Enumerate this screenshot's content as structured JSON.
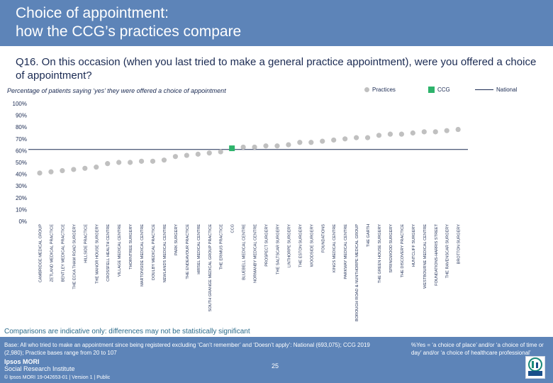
{
  "slide": {
    "title_line1": "Choice of appointment:",
    "title_line2": "how the CCG’s practices compare",
    "question": "Q16. On this occasion (when you last tried to make a general practice appointment), were you offered a choice of appointment?",
    "subtitle": "Percentage of patients saying ‘yes’ they were offered a choice of appointment",
    "note": "Comparisons are indicative only: differences may not be statistically significant",
    "base_text": "Base: All who tried to make an appointment since being registered excluding ‘Can’t remember’ and ‘Doesn’t apply’: National (693,075); CCG 2019 (2,980); Practice bases range from 20 to 107",
    "yes_note": "%Yes = ‘a choice of place’ and/or ‘a choice of time or day’ and/or ‘a choice of healthcare professional’",
    "ipsos_line1": "Ipsos MORI",
    "ipsos_line2": "Social Research Institute",
    "footer_left": "© Ipsos MORI    19-042653-01 | Version 1 | Public",
    "page_number": "25",
    "logo_icon": "ipsos-logo-icon"
  },
  "legend": {
    "practices": "Practices",
    "ccg": "CCG",
    "national": "National"
  },
  "colors": {
    "header": "#5d84b8",
    "practice_dot": "#c0c0c0",
    "ccg_dot": "#2db36b",
    "national_line": "#1a2a52",
    "text_dark": "#1a2a52"
  },
  "chart_data": {
    "type": "scatter",
    "y_ticks": [
      "0%",
      "10%",
      "20%",
      "30%",
      "40%",
      "50%",
      "60%",
      "70%",
      "80%",
      "90%",
      "100%"
    ],
    "ylim": [
      0,
      100
    ],
    "national_value": 61,
    "ccg_value": 62,
    "categories": [
      "CAMBRIDGE MEDICAL GROUP",
      "ZETLAND MEDICAL PRACTICE",
      "BENTLEY MEDICAL PRACTICE",
      "THE ECKA THAM ROAD SURGERY",
      "HILLSIDE PRACTICE",
      "THE MANOR HOUSE SURGERY",
      "CROSSFELL HEALTH CENTRE",
      "VILLAGE MEDICAL CENTRE",
      "THORNTREE SURGERY",
      "MARTONSIDE MEDICAL CENTRE",
      "DOULBY MEDICAL PRACTICE",
      "NEWLANDS MEDICAL CENTRE",
      "PARK SURGERY",
      "THE ENDEAVOUR PRACTICE",
      "HIRSEL MEDICAL CENTRE",
      "SOUTH GRANGE MEDICAL GROUP PRACTICE",
      "THE ERIMUS PRACTICE",
      "CCG",
      "BLUEBELL MEDICAL CENTRE",
      "NORMANBY MEDICAL CENTRE",
      "PROSPECT SURGERY",
      "THE SALTSCAR SURGERY",
      "LINTHORPE SURGERY",
      "THE ESTON SURGERY",
      "WOODSIDE SURGERY",
      "FOUNDATIONS",
      "KINGS MEDICAL CENTRE",
      "PARKWAY MEDICAL CENTRE",
      "BOROUGH ROAD & NUNTHORPE MEDICAL GROUP",
      "THE GARTH",
      "THE GREEN HOUSE SURGERY",
      "SPRINGWOOD SURGERY",
      "THE DISCOVERY PRACTICE",
      "HUNTCLIFF SURGERY",
      "WESTBOURNE MEDICAL CENTRE",
      "FOUNDATIONS-HARRIS STREET",
      "THE RAVENSCAR SURGERY",
      "BROTTON SURGERY"
    ],
    "values": [
      41,
      42,
      43,
      44,
      45,
      46,
      49,
      50,
      50,
      51,
      51,
      52,
      55,
      56,
      57,
      58,
      59,
      62,
      63,
      63,
      64,
      64,
      65,
      67,
      67,
      68,
      69,
      70,
      71,
      71,
      73,
      74,
      74,
      75,
      76,
      76,
      77,
      78
    ],
    "dot_kinds": [
      "practice",
      "practice",
      "practice",
      "practice",
      "practice",
      "practice",
      "practice",
      "practice",
      "practice",
      "practice",
      "practice",
      "practice",
      "practice",
      "practice",
      "practice",
      "practice",
      "practice",
      "ccg",
      "practice",
      "practice",
      "practice",
      "practice",
      "practice",
      "practice",
      "practice",
      "practice",
      "practice",
      "practice",
      "practice",
      "practice",
      "practice",
      "practice",
      "practice",
      "practice",
      "practice",
      "practice",
      "practice",
      "practice"
    ]
  }
}
